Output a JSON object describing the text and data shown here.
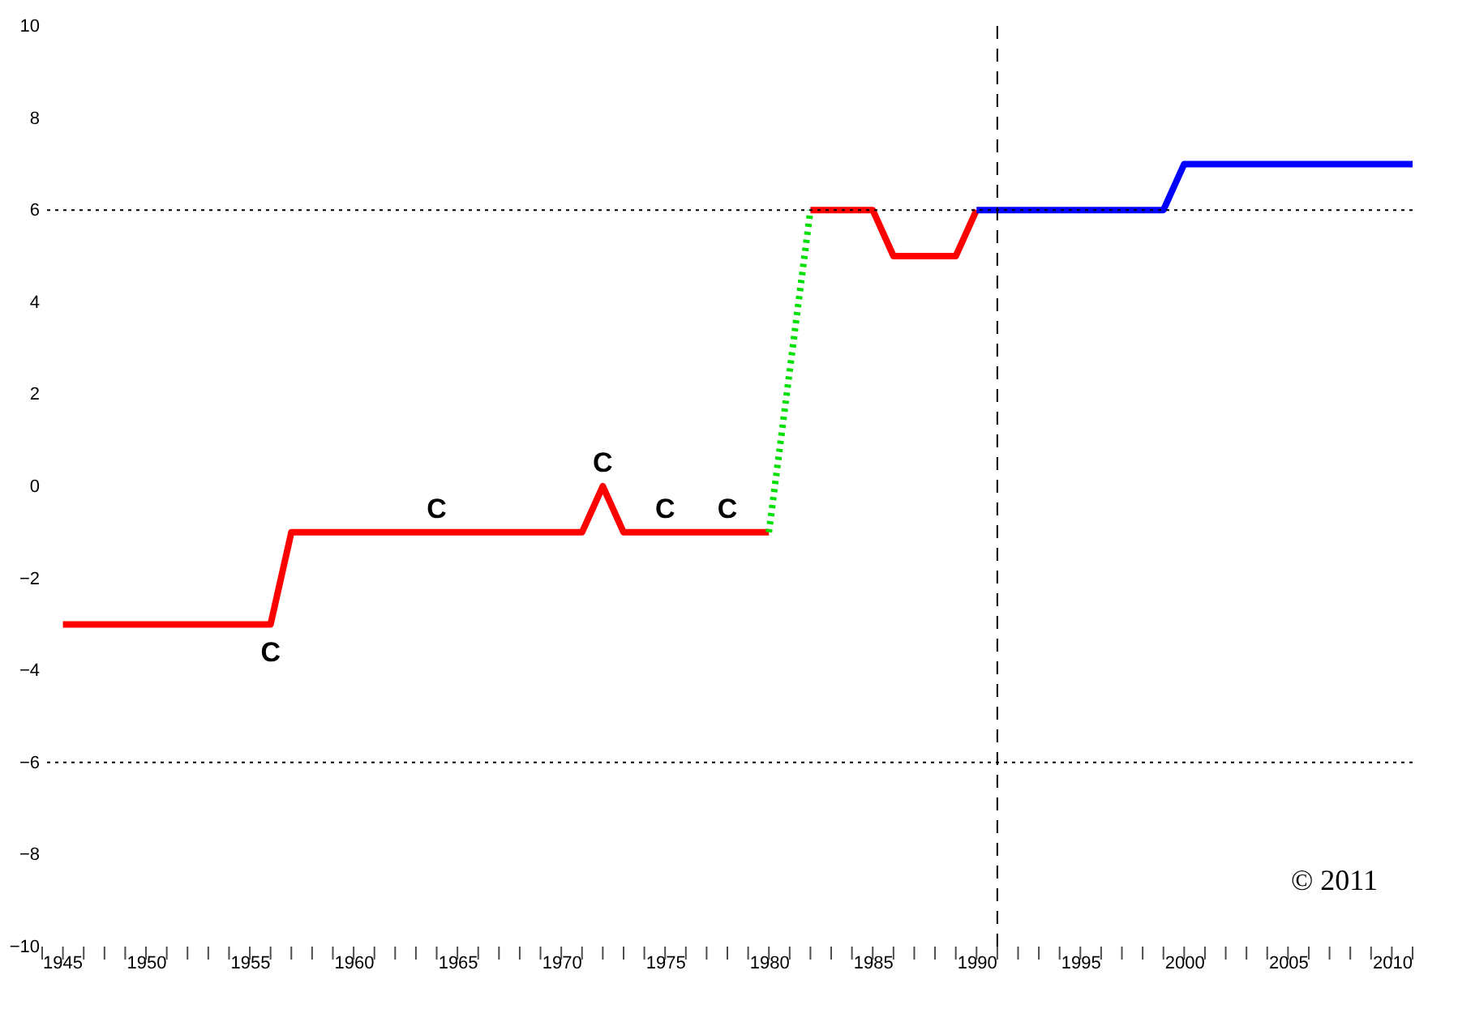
{
  "chart_data": {
    "type": "line",
    "xlim": [
      1945,
      2011
    ],
    "xticks": [
      1945,
      1950,
      1955,
      1960,
      1965,
      1970,
      1975,
      1980,
      1985,
      1990,
      1995,
      2000,
      2005,
      2010
    ],
    "ylim": [
      -10,
      10
    ],
    "yticks": [
      -10,
      -8,
      -6,
      -4,
      -2,
      0,
      2,
      4,
      6,
      8,
      10
    ],
    "grid": false,
    "marker": "none",
    "series": [
      {
        "color": "#ff0000",
        "line_style": "solid",
        "x": [
          1946,
          1956,
          1957,
          1971,
          1972,
          1973,
          1980
        ],
        "values": [
          -3,
          -3,
          -1,
          -1,
          0,
          -1,
          -1
        ]
      },
      {
        "color": "#00e000",
        "line_style": "dotted",
        "x": [
          1980,
          1982
        ],
        "values": [
          -1,
          6
        ]
      },
      {
        "color": "#ff0000",
        "line_style": "solid",
        "x": [
          1982,
          1985,
          1986,
          1989,
          1990
        ],
        "values": [
          6,
          6,
          5,
          5,
          6
        ]
      },
      {
        "color": "#0000ff",
        "line_style": "solid",
        "x": [
          1990,
          1999,
          2000,
          2011
        ],
        "values": [
          6,
          6,
          7,
          7
        ]
      }
    ],
    "ref_lines": [
      {
        "axis": "y",
        "value": 6,
        "line_style": "dotted",
        "color": "#000000"
      },
      {
        "axis": "y",
        "value": -6,
        "line_style": "dotted",
        "color": "#000000"
      },
      {
        "axis": "x",
        "value": 1991,
        "line_style": "dashed",
        "color": "#000000"
      }
    ],
    "annotations": [
      {
        "text": "C",
        "x": 1956,
        "y": -3
      },
      {
        "text": "C",
        "x": 1964,
        "y": -1
      },
      {
        "text": "C",
        "x": 1972,
        "y": 0
      },
      {
        "text": "C",
        "x": 1975,
        "y": -1
      },
      {
        "text": "C",
        "x": 1978,
        "y": -1
      },
      "© 2011"
    ]
  }
}
